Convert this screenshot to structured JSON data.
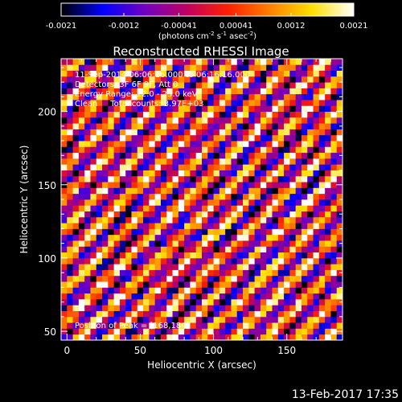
{
  "figure": {
    "date_stamp": "13-Feb-2017 17:35"
  },
  "colorbar": {
    "tick_labels": [
      "-0.0021",
      "-0.0012",
      "-0.00041",
      "0.00041",
      "0.0012",
      "0.0021"
    ],
    "unit_label": {
      "part1": "(photons cm",
      "sup1": "-2",
      "part2": " s",
      "sup2": "-1",
      "part3": " asec",
      "sup3": "-2",
      "part4": ")"
    },
    "range": [
      -0.0021,
      0.0021
    ],
    "colormap": [
      "#000000",
      "#0000ff",
      "#7000c0",
      "#c00060",
      "#ff2000",
      "#ff8000",
      "#ffe000",
      "#ffffff"
    ]
  },
  "chart_data": {
    "type": "heatmap",
    "title": "Reconstructed RHESSI Image",
    "xlabel": "Heliocentric X (arcsec)",
    "ylabel": "Heliocentric Y (arcsec)",
    "xlim": [
      -4,
      188
    ],
    "ylim": [
      44,
      236
    ],
    "x_ticks": [
      0,
      50,
      100,
      150
    ],
    "y_ticks": [
      50,
      100,
      150,
      200
    ],
    "annotations": {
      "time_range": "11-Sep-2014 06:06:16.000 to 06:16:16.000",
      "detectors": "Detectors: 3F 6F 9F, Att 0",
      "energy_range": "Energy Range: 12.0 - 25.0 keV",
      "clean_total": "Clean     Total counts: 3.97E+03",
      "peak": "Position of Peak = [168,184]"
    },
    "peak_position": [
      168,
      184
    ],
    "pattern": "diagonal fringe stripes running from lower-left to upper-right",
    "grid": false
  }
}
